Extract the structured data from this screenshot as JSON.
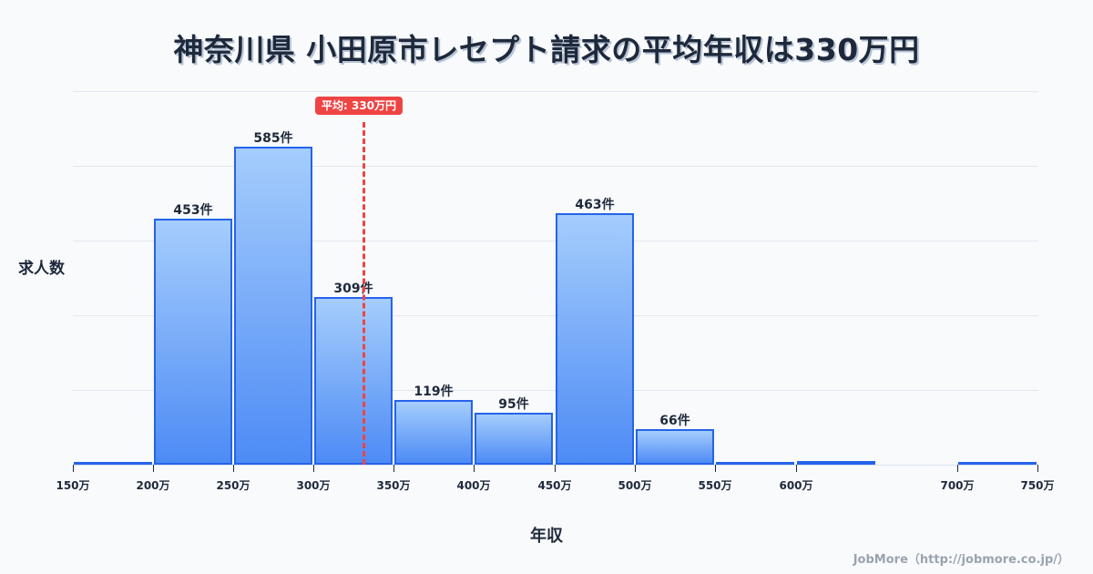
{
  "title": "神奈川県 小田原市レセプト請求の平均年収は330万円",
  "credit": "JobMore（http://jobmore.co.jp/）",
  "average_badge": "平均: 330万円",
  "chart_data": {
    "type": "bar",
    "title": "神奈川県 小田原市レセプト請求の平均年収は330万円",
    "xlabel": "年収",
    "ylabel": "求人数",
    "categories": [
      "150-200万",
      "200-250万",
      "250-300万",
      "300-350万",
      "350-400万",
      "400-450万",
      "450-500万",
      "500-550万",
      "550-600万",
      "600-650万",
      "700-750万"
    ],
    "values": [
      4,
      453,
      585,
      309,
      119,
      95,
      463,
      66,
      4,
      6,
      2
    ],
    "value_labels": [
      "",
      "453件",
      "585件",
      "309件",
      "119件",
      "95件",
      "463件",
      "66件",
      "",
      "",
      ""
    ],
    "x_tick_labels": [
      "150万",
      "200万",
      "250万",
      "300万",
      "350万",
      "400万",
      "450万",
      "500万",
      "550万",
      "600万",
      "700万",
      "750万"
    ],
    "average": {
      "value": 330,
      "label": "平均: 330万円",
      "color": "#ef4444"
    },
    "bar_color": "#2563eb",
    "grid": true,
    "ylim": [
      0,
      690
    ]
  }
}
